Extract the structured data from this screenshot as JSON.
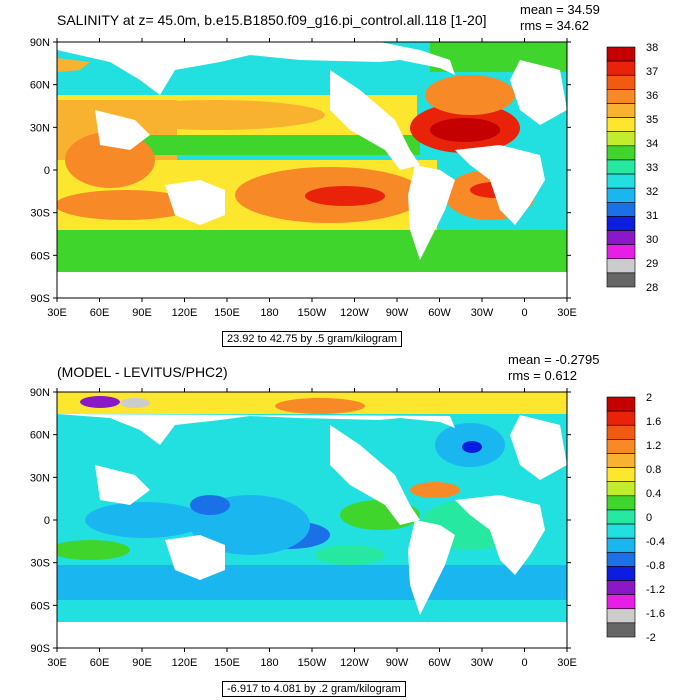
{
  "panels": [
    {
      "title": "SALINITY at z=  45.0m, b.e15.B1850.f09_g16.pi_control.all.118 [1-20]",
      "mean": "mean = 34.59",
      "rms": "rms = 34.62",
      "range_label": "23.92 to 42.75 by .5 gram/kilogram",
      "colorbar": {
        "labels": [
          "38",
          "37",
          "36",
          "35",
          "34",
          "33",
          "32",
          "31",
          "30",
          "29",
          "28"
        ],
        "colors": [
          "#c40000",
          "#e8230a",
          "#f25a12",
          "#f78a26",
          "#f9b230",
          "#fde62e",
          "#c4ec2e",
          "#3fd52c",
          "#26e8a0",
          "#22e0e0",
          "#1ab6f0",
          "#1a70e6",
          "#0b1ee0",
          "#8a18c8",
          "#e61ee6",
          "#cccccc",
          "#666666"
        ]
      }
    },
    {
      "title": "(MODEL - LEVITUS/PHC2)",
      "mean": "mean = -0.2795",
      "rms": "rms = 0.612",
      "range_label": "-6.917 to 4.081 by .2 gram/kilogram",
      "colorbar": {
        "labels": [
          "2",
          "1.6",
          "1.2",
          "0.8",
          "0.4",
          "0",
          "-0.4",
          "-0.8",
          "-1.2",
          "-1.6",
          "-2"
        ],
        "colors": [
          "#c40000",
          "#e8230a",
          "#f25a12",
          "#f78a26",
          "#f9b230",
          "#fde62e",
          "#c4ec2e",
          "#3fd52c",
          "#26e8a0",
          "#22e0e0",
          "#1ab6f0",
          "#1a70e6",
          "#0b1ee0",
          "#8a18c8",
          "#e61ee6",
          "#cccccc",
          "#666666"
        ]
      }
    }
  ],
  "axes": {
    "lat_labels": [
      "90N",
      "60N",
      "30N",
      "0",
      "30S",
      "60S",
      "90S"
    ],
    "lon_labels": [
      "30E",
      "60E",
      "90E",
      "120E",
      "150E",
      "180",
      "150W",
      "120W",
      "90W",
      "60W",
      "30W",
      "0",
      "30E"
    ]
  }
}
